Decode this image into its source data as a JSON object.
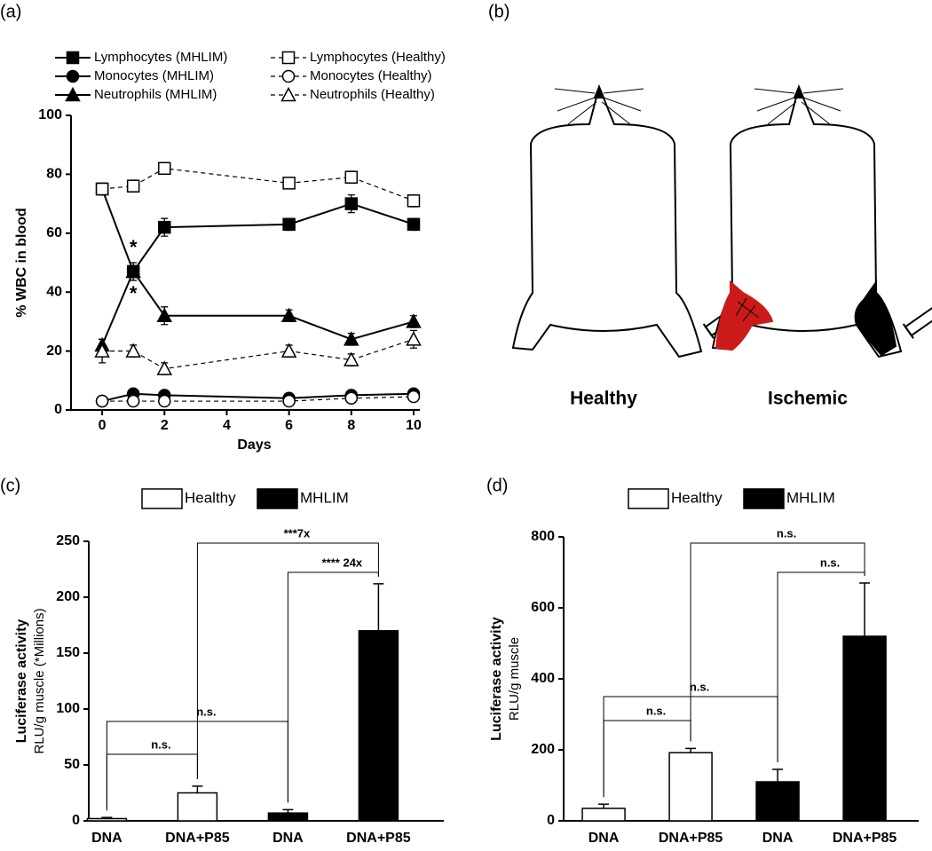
{
  "chart_data": [
    {
      "type": "line",
      "panel_label": "(a)",
      "xlabel": "Days",
      "ylabel": "% WBC in blood",
      "x": [
        0,
        1,
        2,
        6,
        8,
        10
      ],
      "xlim": [
        -1,
        10.2
      ],
      "xticks": [
        0,
        2,
        4,
        6,
        8,
        10
      ],
      "ylim": [
        0,
        100
      ],
      "yticks": [
        0,
        20,
        40,
        60,
        80,
        100
      ],
      "series": [
        {
          "name": "Lymphocytes (MHLIM)",
          "color": "#000",
          "marker": "square",
          "fill": "filled",
          "dash": false,
          "values": [
            75,
            47,
            62,
            63,
            70,
            63
          ],
          "errors": [
            2,
            2,
            3,
            2,
            3,
            2
          ]
        },
        {
          "name": "Monocytes (MHLIM)",
          "color": "#000",
          "marker": "circle",
          "fill": "filled",
          "dash": false,
          "values": [
            3,
            5.5,
            5,
            4,
            5,
            5.5
          ],
          "errors": [
            1,
            1,
            1,
            1,
            1,
            1
          ]
        },
        {
          "name": "Neutrophils (MHLIM)",
          "color": "#000",
          "marker": "triangle",
          "fill": "filled",
          "dash": false,
          "values": [
            22,
            47,
            32,
            32,
            24,
            30
          ],
          "errors": [
            2,
            3,
            3,
            2,
            2,
            2
          ]
        },
        {
          "name": "Lymphocytes (Healthy)",
          "color": "#000",
          "marker": "square",
          "fill": "open",
          "dash": true,
          "values": [
            75,
            76,
            82,
            77,
            79,
            71
          ],
          "errors": [
            2,
            2,
            2,
            1,
            2,
            2
          ]
        },
        {
          "name": "Monocytes (Healthy)",
          "color": "#000",
          "marker": "circle",
          "fill": "open",
          "dash": true,
          "values": [
            3,
            3,
            3,
            3,
            4,
            4.5
          ],
          "errors": [
            1,
            1,
            1,
            1,
            1,
            1
          ]
        },
        {
          "name": "Neutrophils (Healthy)",
          "color": "#000",
          "marker": "triangle",
          "fill": "open",
          "dash": true,
          "values": [
            20,
            20,
            14,
            20,
            17,
            24
          ],
          "errors": [
            4,
            2,
            2,
            2,
            2,
            3
          ]
        }
      ],
      "annotations": [
        "*",
        "*"
      ]
    },
    {
      "type": "bar",
      "panel_label": "(c)",
      "ylabel": "Luciferase activity",
      "ysublabel": "RLU/g muscle (*Millions)",
      "categories": [
        "DNA",
        "DNA+P85",
        "DNA",
        "DNA+P85"
      ],
      "ylim": [
        0,
        250
      ],
      "yticks": [
        0,
        50,
        100,
        150,
        200,
        250
      ],
      "series": [
        {
          "name": "Healthy",
          "color": "#ffffff",
          "values": [
            2,
            25,
            null,
            null
          ],
          "errors": [
            1,
            6,
            null,
            null
          ]
        },
        {
          "name": "MHLIM",
          "color": "#000000",
          "values": [
            null,
            null,
            7,
            170
          ],
          "errors": [
            null,
            null,
            3,
            42
          ]
        }
      ],
      "comparisons": [
        {
          "pair": [
            0,
            1
          ],
          "label": "n.s."
        },
        {
          "pair": [
            0,
            2
          ],
          "label": "n.s."
        },
        {
          "pair": [
            1,
            3
          ],
          "label": "***7x"
        },
        {
          "pair": [
            2,
            3
          ],
          "label": "**** 24x"
        }
      ]
    },
    {
      "type": "bar",
      "panel_label": "(d)",
      "ylabel": "Luciferase activity",
      "ysublabel": "RLU/g muscle",
      "categories": [
        "DNA",
        "DNA+P85",
        "DNA",
        "DNA+P85"
      ],
      "ylim": [
        0,
        800
      ],
      "yticks": [
        0,
        200,
        400,
        600,
        800
      ],
      "series": [
        {
          "name": "Healthy",
          "color": "#ffffff",
          "values": [
            35,
            192,
            null,
            null
          ],
          "errors": [
            12,
            12,
            null,
            null
          ]
        },
        {
          "name": "MHLIM",
          "color": "#000000",
          "values": [
            null,
            null,
            110,
            520
          ],
          "errors": [
            null,
            null,
            35,
            150
          ]
        }
      ],
      "comparisons": [
        {
          "pair": [
            0,
            1
          ],
          "label": "n.s."
        },
        {
          "pair": [
            0,
            2
          ],
          "label": "n.s."
        },
        {
          "pair": [
            1,
            3
          ],
          "label": "n.s."
        },
        {
          "pair": [
            2,
            3
          ],
          "label": "n.s."
        }
      ]
    }
  ],
  "diagram": {
    "panel_label": "(b)",
    "labels": [
      "Healthy",
      "Ischemic"
    ]
  }
}
